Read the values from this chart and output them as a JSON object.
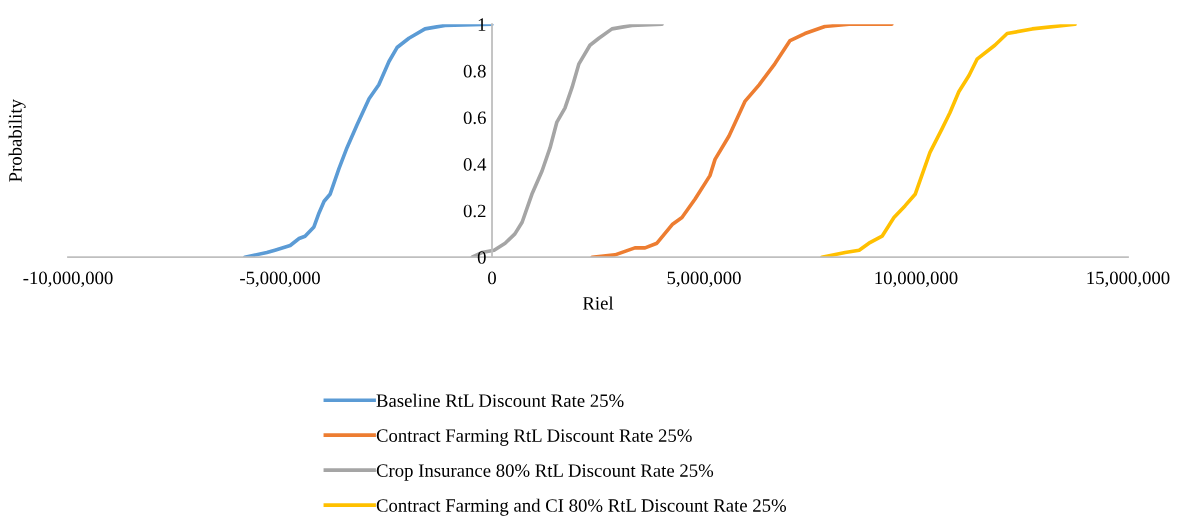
{
  "chart_data": {
    "type": "line",
    "xlabel": "Riel",
    "ylabel": "Probability",
    "xlim": [
      -10000000,
      15000000
    ],
    "xticks": [
      {
        "value": -10000000,
        "label": "-10,000,000"
      },
      {
        "value": -5000000,
        "label": "-5,000,000"
      },
      0,
      {
        "value": 5000000,
        "label": "5,000,000"
      },
      {
        "value": 10000000,
        "label": "10,000,000"
      },
      {
        "value": 15000000,
        "label": "15,000,000"
      }
    ],
    "ylim": [
      0,
      1
    ],
    "yticks": [
      0,
      0.2,
      0.4,
      0.6,
      0.8,
      1
    ],
    "grid": false,
    "legend": "bottom",
    "marker": "none",
    "line_style": "solid",
    "series": [
      {
        "name": "Baseline RtL Discount Rate 25%",
        "color": "#5b9bd5",
        "x": [
          -5830000,
          -5310000,
          -5120000,
          -4760000,
          -4550000,
          -4410000,
          -4200000,
          -4080000,
          -3960000,
          -3820000,
          -3610000,
          -3420000,
          -3180000,
          -2900000,
          -2670000,
          -2430000,
          -2240000,
          -1960000,
          -1580000,
          -1110000,
          0
        ],
        "values": [
          0.0,
          0.02,
          0.03,
          0.05,
          0.08,
          0.09,
          0.13,
          0.19,
          0.24,
          0.27,
          0.38,
          0.47,
          0.57,
          0.68,
          0.74,
          0.84,
          0.9,
          0.94,
          0.98,
          0.995,
          1.0
        ]
      },
      {
        "name": "Contract Farming RtL Discount Rate 25%",
        "color": "#ed7d31",
        "x": [
          2360000,
          2900000,
          3370000,
          3610000,
          3890000,
          4250000,
          4480000,
          4790000,
          5140000,
          5260000,
          5590000,
          5970000,
          6300000,
          6670000,
          7030000,
          7380000,
          7850000,
          8420000,
          9430000
        ],
        "values": [
          0.0,
          0.01,
          0.04,
          0.04,
          0.06,
          0.14,
          0.17,
          0.25,
          0.35,
          0.42,
          0.52,
          0.67,
          0.74,
          0.83,
          0.93,
          0.96,
          0.99,
          1.0,
          1.0
        ]
      },
      {
        "name": "Crop Insurance 80% RtL Discount Rate 25%",
        "color": "#a5a5a5",
        "x": [
          -470000,
          -240000,
          50000,
          310000,
          540000,
          710000,
          940000,
          1180000,
          1370000,
          1530000,
          1720000,
          1890000,
          2050000,
          2310000,
          2520000,
          2830000,
          3300000,
          4010000
        ],
        "values": [
          0.0,
          0.02,
          0.03,
          0.06,
          0.1,
          0.15,
          0.27,
          0.37,
          0.47,
          0.58,
          0.64,
          0.73,
          0.83,
          0.91,
          0.94,
          0.98,
          0.995,
          1.0
        ]
      },
      {
        "name": "Contract Farming and CI 80% RtL Discount Rate 25%",
        "color": "#ffc000",
        "x": [
          7780000,
          8330000,
          8660000,
          8890000,
          9200000,
          9480000,
          9740000,
          9980000,
          10330000,
          10610000,
          10800000,
          11010000,
          11250000,
          11440000,
          11860000,
          12150000,
          12740000,
          13750000
        ],
        "values": [
          0.0,
          0.02,
          0.03,
          0.06,
          0.09,
          0.17,
          0.22,
          0.27,
          0.45,
          0.55,
          0.62,
          0.71,
          0.78,
          0.85,
          0.91,
          0.96,
          0.98,
          1.0
        ]
      }
    ]
  }
}
